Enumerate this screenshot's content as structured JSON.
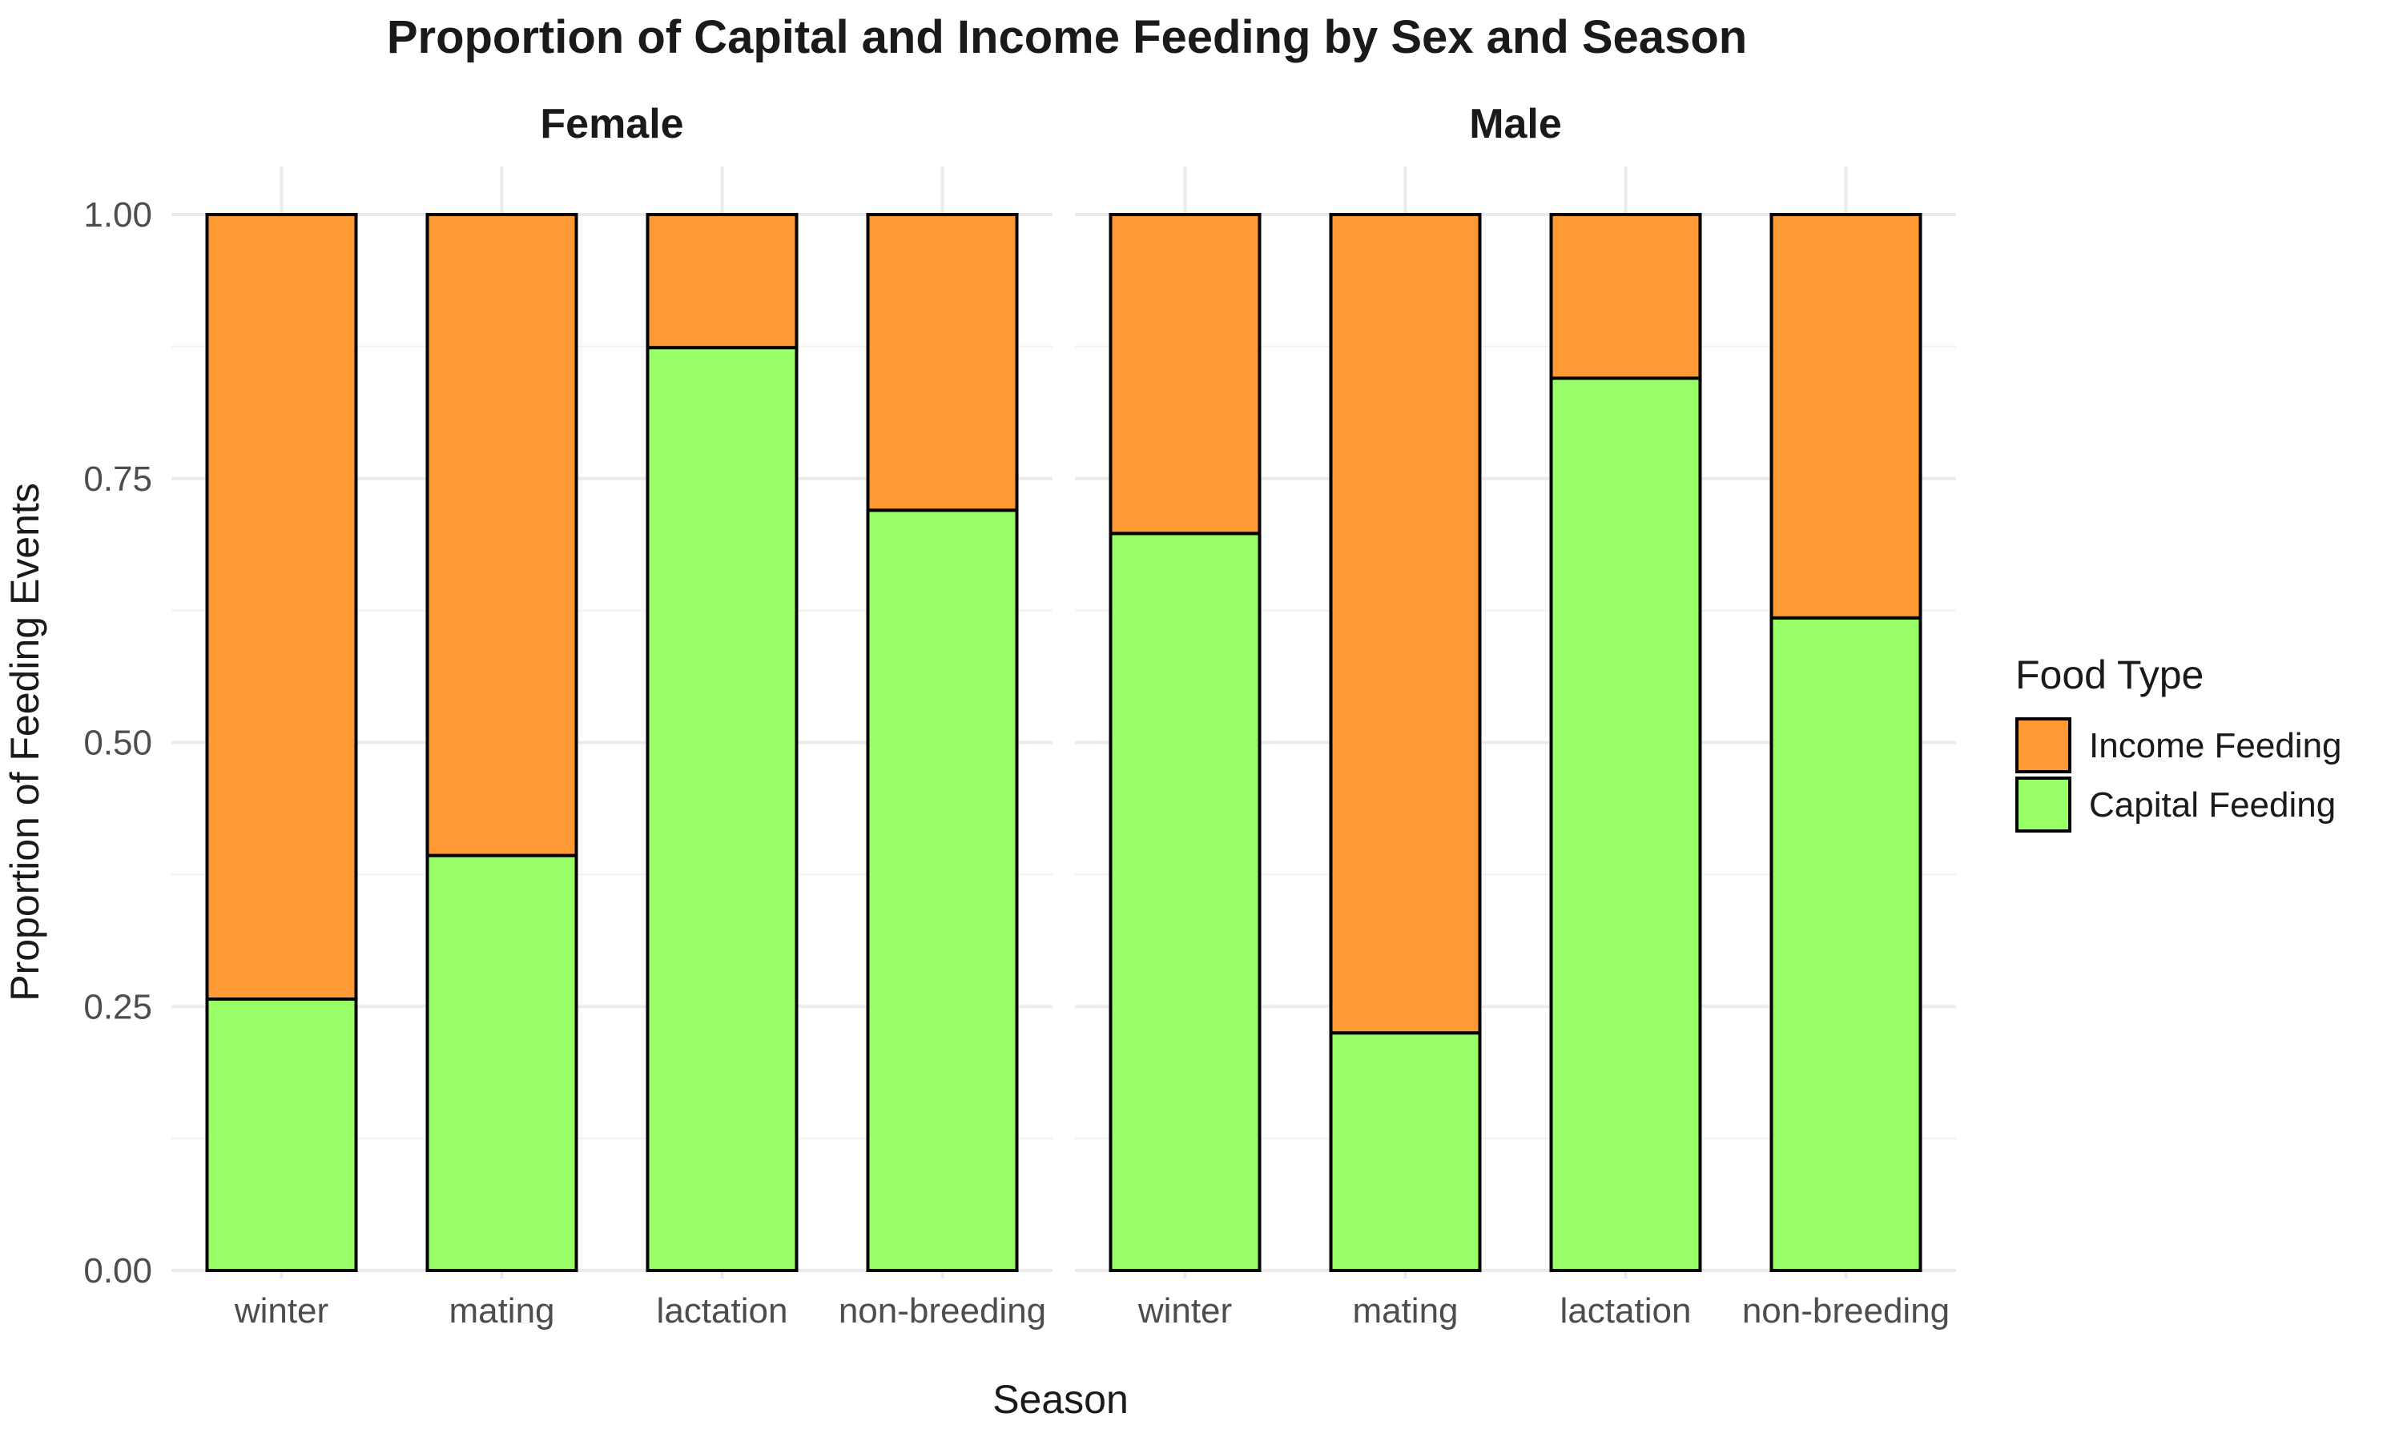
{
  "chart_data": {
    "type": "bar",
    "stacked": true,
    "title": "Proportion of Capital and Income Feeding by Sex and Season",
    "xlabel": "Season",
    "ylabel": "Proportion of Feeding Events",
    "ylim": [
      0,
      1
    ],
    "y_ticks": [
      "0.00",
      "0.25",
      "0.50",
      "0.75",
      "1.00"
    ],
    "y_tick_values": [
      0,
      0.25,
      0.5,
      0.75,
      1.0
    ],
    "grid": true,
    "legend": {
      "title": "Food Type",
      "position": "right",
      "entries": [
        "Income Feeding",
        "Capital Feeding"
      ]
    },
    "colors": {
      "Income Feeding": "#ff9933",
      "Capital Feeding": "#99ff66"
    },
    "categories": [
      "winter",
      "mating",
      "lactation",
      "non-breeding"
    ],
    "panels": [
      {
        "name": "Female",
        "series": [
          {
            "name": "Capital Feeding",
            "values": [
              0.257,
              0.393,
              0.874,
              0.72
            ]
          },
          {
            "name": "Income Feeding",
            "values": [
              0.743,
              0.607,
              0.126,
              0.28
            ]
          }
        ]
      },
      {
        "name": "Male",
        "series": [
          {
            "name": "Capital Feeding",
            "values": [
              0.698,
              0.225,
              0.845,
              0.618
            ]
          },
          {
            "name": "Income Feeding",
            "values": [
              0.302,
              0.775,
              0.155,
              0.382
            ]
          }
        ]
      }
    ]
  }
}
